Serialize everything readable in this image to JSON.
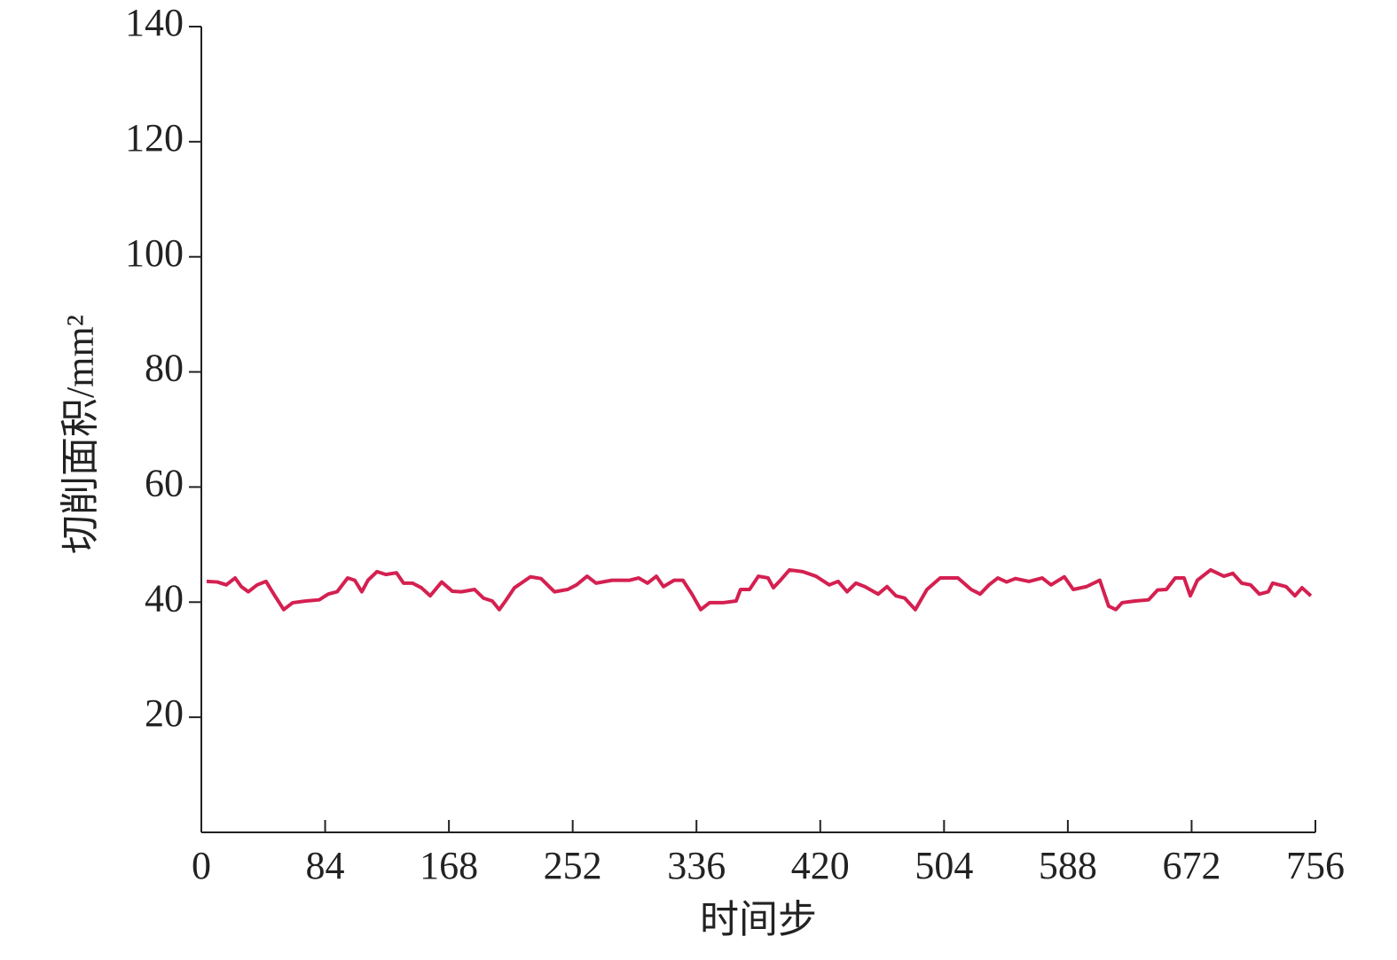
{
  "chart_data": {
    "type": "line",
    "xlabel": "时间步",
    "ylabel": "切削面积/mm²",
    "xlim": [
      0,
      756
    ],
    "ylim": [
      0,
      140
    ],
    "xticks": [
      0,
      84,
      168,
      252,
      336,
      420,
      504,
      588,
      672,
      756
    ],
    "yticks": [
      20,
      40,
      60,
      80,
      100,
      120,
      140
    ],
    "x": [
      3.6,
      10.8,
      16.9,
      22.9,
      27.1,
      31.9,
      37.9,
      43.9,
      49.9,
      55.9,
      62.0,
      71.0,
      80.0,
      86.1,
      92.1,
      99.3,
      104.1,
      108.9,
      113.1,
      119.2,
      125.2,
      132.4,
      137.2,
      143.3,
      149.3,
      155.3,
      163.1,
      170.3,
      176.4,
      185.4,
      191.4,
      197.4,
      202.2,
      206.4,
      212.5,
      223.3,
      230.5,
      239.6,
      248.6,
      254.6,
      261.8,
      267.8,
      278.7,
      290.7,
      296.7,
      302.8,
      308.8,
      313.6,
      320.8,
      326.8,
      332.9,
      338.9,
      344.9,
      353.9,
      362.9,
      365.9,
      372.0,
      378.0,
      384.6,
      388.2,
      393.0,
      399.1,
      408.1,
      417.1,
      426.1,
      432.2,
      438.2,
      444.2,
      450.2,
      459.3,
      465.3,
      471.3,
      477.3,
      484.5,
      492.4,
      501.4,
      513.4,
      522.4,
      528.5,
      534.5,
      540.5,
      546.5,
      552.5,
      561.6,
      570.6,
      576.6,
      585.6,
      591.7,
      600.7,
      609.7,
      615.7,
      620.6,
      624.8,
      633.8,
      642.8,
      648.9,
      654.9,
      660.9,
      666.9,
      671.1,
      675.9,
      684.9,
      693.9,
      700.0,
      706.0,
      712.0,
      718.0,
      724.0,
      727.0,
      736.1,
      742.1,
      746.9,
      752.9
    ],
    "series": [
      {
        "color": "#d42050",
        "values": [
          43.6,
          43.5,
          43.0,
          44.2,
          42.7,
          41.8,
          43.0,
          43.6,
          41.1,
          38.7,
          39.9,
          40.2,
          40.4,
          41.4,
          41.8,
          44.2,
          43.8,
          41.8,
          43.8,
          45.3,
          44.8,
          45.1,
          43.3,
          43.3,
          42.5,
          41.1,
          43.5,
          41.9,
          41.8,
          42.2,
          40.7,
          40.2,
          38.7,
          40.2,
          42.5,
          44.4,
          44.1,
          41.8,
          42.2,
          43.0,
          44.5,
          43.3,
          43.8,
          43.8,
          44.2,
          43.3,
          44.5,
          42.7,
          43.8,
          43.8,
          41.4,
          38.7,
          39.9,
          39.9,
          40.2,
          42.2,
          42.2,
          44.5,
          44.2,
          42.5,
          43.8,
          45.6,
          45.3,
          44.5,
          43.0,
          43.6,
          41.8,
          43.3,
          42.7,
          41.4,
          42.7,
          41.1,
          40.7,
          38.7,
          42.2,
          44.2,
          44.2,
          42.2,
          41.4,
          43.0,
          44.2,
          43.5,
          44.1,
          43.6,
          44.2,
          43.0,
          44.4,
          42.2,
          42.7,
          43.8,
          39.3,
          38.7,
          39.9,
          40.2,
          40.4,
          42.1,
          42.2,
          44.2,
          44.2,
          41.1,
          43.8,
          45.6,
          44.5,
          45.0,
          43.3,
          43.0,
          41.4,
          41.8,
          43.3,
          42.7,
          41.1,
          42.5,
          41.1
        ]
      }
    ]
  }
}
